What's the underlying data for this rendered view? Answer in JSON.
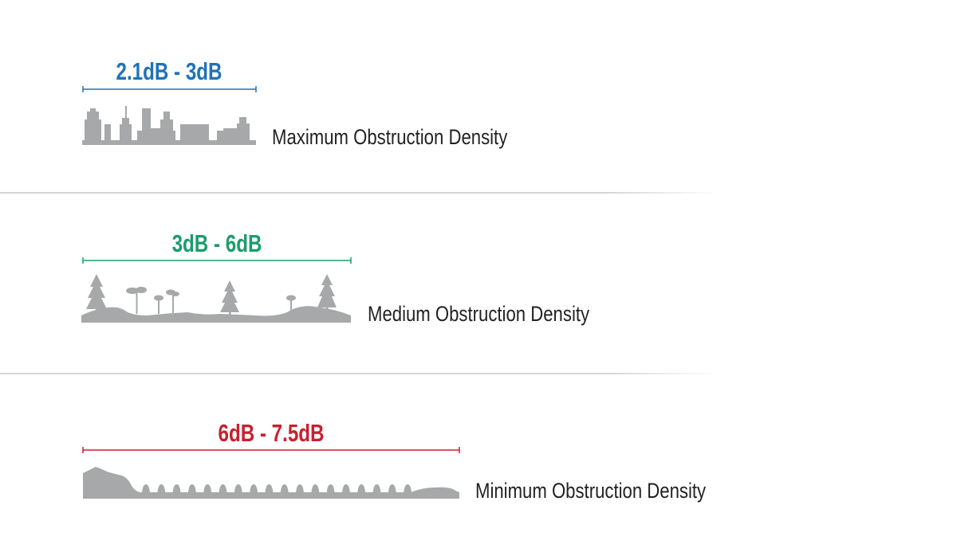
{
  "colors": {
    "high": "#1f72b8",
    "medium": "#1a9d6c",
    "low": "#c9202f",
    "terrain": "#a7a8aa",
    "divider": "#d9d9d9"
  },
  "rows": [
    {
      "range": "2.1dB - 3dB",
      "label": "Maximum Obstruction Density",
      "icon": "city-skyline-icon"
    },
    {
      "range": "3dB - 6dB",
      "label": "Medium Obstruction Density",
      "icon": "forest-icon"
    },
    {
      "range": "6dB - 7.5dB",
      "label": "Minimum Obstruction Density",
      "icon": "open-field-icon"
    }
  ]
}
